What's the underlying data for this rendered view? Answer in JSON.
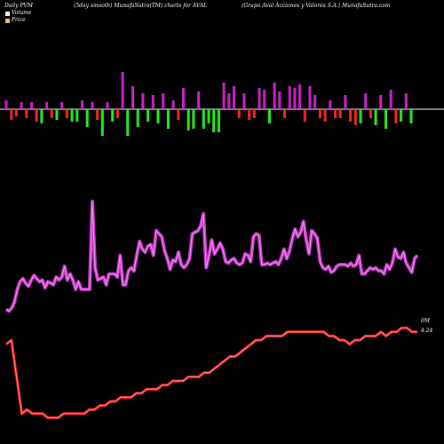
{
  "header": {
    "left": "Daily PVM",
    "center": "(5day smooth) MunafaSutra(TM) charts for AVAL",
    "right": "(Grupo Aval Acciones y Valores S.A.) MunafaSutra.com"
  },
  "legend": [
    {
      "label": "Volume",
      "color": "#f5f5dc"
    },
    {
      "label": "Price",
      "color": "#f0c37a"
    }
  ],
  "colors": {
    "volume_line": "#cc33cc",
    "price_line": "#ff2020",
    "bar_up": "#cc22cc",
    "bar_down": "#ff2222",
    "bar_green": "#22ee22",
    "baseline": "#ffffff"
  },
  "chart_data": [
    {
      "type": "bar",
      "title": "PVM bars",
      "values": [
        10,
        -12,
        -8,
        8,
        -10,
        8,
        -14,
        -16,
        8,
        -10,
        -12,
        8,
        -10,
        -14,
        -14,
        10,
        -20,
        8,
        -12,
        -30,
        8,
        -14,
        -10,
        42,
        -30,
        26,
        -20,
        18,
        -14,
        16,
        -16,
        18,
        -22,
        10,
        -12,
        24,
        -24,
        -22,
        20,
        -22,
        -16,
        -26,
        -26,
        30,
        18,
        26,
        -10,
        18,
        -12,
        -10,
        24,
        22,
        -16,
        30,
        20,
        -10,
        26,
        24,
        28,
        -14,
        26,
        16,
        -10,
        -14,
        10,
        -10,
        -10,
        16,
        -14,
        -18,
        -16,
        18,
        -10,
        -18,
        16,
        -22,
        22,
        -16,
        -14,
        18,
        -16
      ],
      "colors": [
        "up",
        "down",
        "down",
        "up",
        "down",
        "up",
        "down",
        "green",
        "up",
        "down",
        "green",
        "up",
        "down",
        "green",
        "green",
        "up",
        "green",
        "up",
        "down",
        "green",
        "up",
        "green",
        "down",
        "up",
        "green",
        "up",
        "green",
        "up",
        "green",
        "up",
        "green",
        "up",
        "green",
        "up",
        "down",
        "up",
        "green",
        "green",
        "up",
        "green",
        "green",
        "green",
        "green",
        "up",
        "up",
        "up",
        "down",
        "up",
        "down",
        "down",
        "up",
        "up",
        "green",
        "up",
        "up",
        "down",
        "up",
        "up",
        "up",
        "down",
        "up",
        "up",
        "down",
        "down",
        "up",
        "down",
        "down",
        "up",
        "down",
        "down",
        "green",
        "up",
        "down",
        "green",
        "up",
        "green",
        "up",
        "down",
        "green",
        "up",
        "green"
      ]
    },
    {
      "type": "line",
      "title": "Volume (5day smooth)",
      "values": [
        25,
        24,
        26,
        30,
        38,
        43,
        45,
        42,
        40,
        44,
        47,
        45,
        43,
        44,
        39,
        43,
        42,
        41,
        46,
        44,
        46,
        53,
        44,
        48,
        44,
        38,
        43,
        38,
        38,
        38,
        38,
        95,
        52,
        44,
        45,
        46,
        41,
        48,
        48,
        48,
        46,
        60,
        41,
        41,
        50,
        52,
        50,
        60,
        69,
        64,
        62,
        66,
        67,
        60,
        76,
        74,
        72,
        63,
        58,
        51,
        57,
        56,
        62,
        54,
        52,
        54,
        58,
        74,
        75,
        76,
        79,
        87,
        52,
        60,
        70,
        61,
        64,
        68,
        64,
        56,
        55,
        57,
        58,
        55,
        54,
        55,
        61,
        60,
        56,
        72,
        74,
        73,
        54,
        54,
        55,
        54,
        55,
        56,
        54,
        58,
        64,
        58,
        63,
        71,
        77,
        72,
        75,
        82,
        70,
        61,
        76,
        74,
        71,
        56,
        52,
        51,
        53,
        49,
        50,
        53,
        54,
        54,
        54,
        53,
        55,
        53,
        54,
        60,
        48,
        48,
        50,
        52,
        51,
        52,
        50,
        50,
        48,
        54,
        51,
        55,
        64,
        59,
        58,
        62,
        55,
        52,
        49,
        58,
        60
      ],
      "end_label": "0M"
    },
    {
      "type": "line",
      "title": "Price",
      "values": [
        3.9,
        4.0,
        3.1,
        2.2,
        2.3,
        2.2,
        2.2,
        2.2,
        2.1,
        2.1,
        2.1,
        2.2,
        2.2,
        2.2,
        2.2,
        2.2,
        2.3,
        2.3,
        2.4,
        2.4,
        2.5,
        2.5,
        2.6,
        2.6,
        2.6,
        2.7,
        2.7,
        2.8,
        2.8,
        2.8,
        2.9,
        2.9,
        3.0,
        3.0,
        3.0,
        3.1,
        3.1,
        3.1,
        3.2,
        3.2,
        3.3,
        3.4,
        3.5,
        3.6,
        3.6,
        3.7,
        3.8,
        3.9,
        4.0,
        4.0,
        4.1,
        4.1,
        4.1,
        4.1,
        4.2,
        4.2,
        4.2,
        4.2,
        4.2,
        4.2,
        4.2,
        4.2,
        4.1,
        4.1,
        4.0,
        4.0,
        3.9,
        4.0,
        4.0,
        4.1,
        4.1,
        4.1,
        4.2,
        4.1,
        4.2,
        4.2,
        4.3,
        4.3,
        4.2,
        4.2
      ],
      "end_label": "4.24"
    }
  ]
}
